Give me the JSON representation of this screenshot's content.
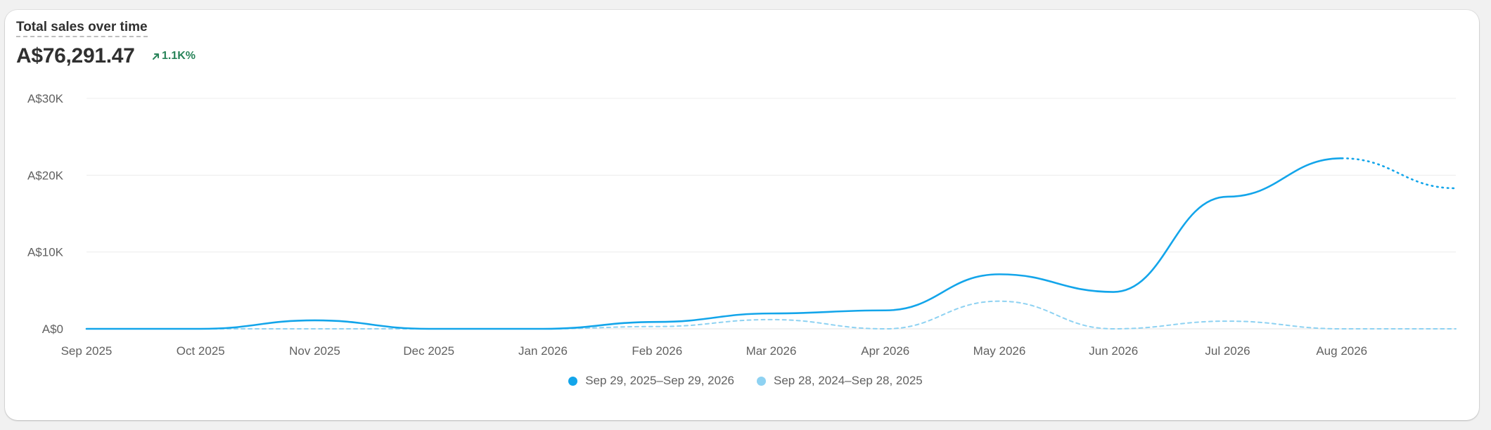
{
  "card": {
    "title": "Total sales over time",
    "total": "A$76,291.47",
    "change": "1.1K%",
    "change_icon": "arrow-up-right-icon",
    "change_color": "#29845a"
  },
  "legend": [
    {
      "label": "Sep 29, 2025–Sep 29, 2026",
      "color": "#13a5ea"
    },
    {
      "label": "Sep 28, 2024–Sep 28, 2025",
      "color": "#8ed2f2"
    }
  ],
  "chart_data": {
    "type": "line",
    "title": "Total sales over time",
    "xlabel": "",
    "ylabel": "",
    "x": [
      0,
      1,
      2,
      3,
      4,
      5,
      6,
      7,
      8,
      9,
      10,
      11,
      12
    ],
    "x_tick_labels": [
      "Sep 2025",
      "Oct 2025",
      "Nov 2025",
      "Dec 2025",
      "Jan 2026",
      "Feb 2026",
      "Mar 2026",
      "Apr 2026",
      "May 2026",
      "Jun 2026",
      "Jul 2026",
      "Aug 2026",
      "Sep 2026"
    ],
    "y_ticks": [
      0,
      10000,
      20000,
      30000
    ],
    "y_tick_labels": [
      "A$0",
      "A$10K",
      "A$20K",
      "A$30K"
    ],
    "ylim": [
      0,
      30000
    ],
    "grid": true,
    "legend_position": "bottom",
    "series": [
      {
        "name": "Sep 29, 2025–Sep 29, 2026",
        "color": "#13a5ea",
        "values": [
          0,
          0,
          1100,
          0,
          0,
          900,
          2000,
          2400,
          7100,
          4800,
          17200,
          22200,
          18300
        ],
        "incomplete_from_index": 11
      },
      {
        "name": "Sep 28, 2024–Sep 28, 2025",
        "color": "#8ed2f2",
        "values": [
          0,
          0,
          0,
          0,
          0,
          300,
          1200,
          0,
          3600,
          0,
          1000,
          0,
          0
        ]
      }
    ]
  }
}
